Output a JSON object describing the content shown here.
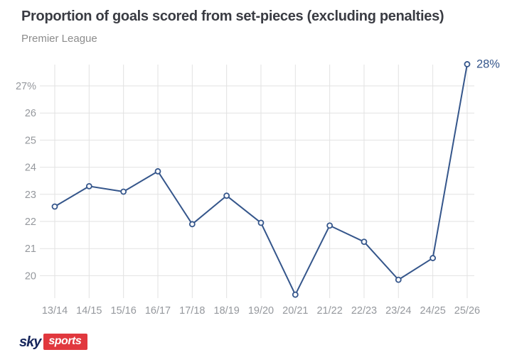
{
  "header": {
    "title": "Proportion of goals scored from set-pieces (excluding penalties)",
    "subtitle": "Premier League"
  },
  "chart_data": {
    "type": "line",
    "title": "Proportion of goals scored from set-pieces (excluding penalties)",
    "subtitle": "Premier League",
    "categories": [
      "13/14",
      "14/15",
      "15/16",
      "16/17",
      "17/18",
      "18/19",
      "19/20",
      "20/21",
      "21/22",
      "22/23",
      "23/24",
      "24/25",
      "25/26"
    ],
    "values": [
      22.55,
      23.3,
      23.1,
      23.85,
      21.9,
      22.95,
      21.95,
      19.3,
      21.85,
      21.25,
      19.85,
      20.65,
      27.8
    ],
    "xlabel": "",
    "ylabel": "",
    "y_ticks": [
      27,
      26,
      25,
      24,
      23,
      22,
      21,
      20
    ],
    "y_tick_labels": [
      "27%",
      "26",
      "25",
      "24",
      "23",
      "22",
      "21",
      "20"
    ],
    "ylim": [
      19.0,
      28.2
    ],
    "grid": true,
    "legend": "none",
    "marker": "open-circle",
    "annotation": {
      "category": "25/26",
      "label": "28%"
    }
  },
  "colors": {
    "line": "#35568b",
    "grid": "#e2e2e2",
    "tick_label": "#95989d",
    "title": "#3a3c43",
    "subtitle": "#8c8c8c",
    "annotation": "#35568b",
    "logo_navy": "#16265c",
    "logo_red": "#e1383e",
    "background": "#ffffff"
  },
  "footer": {
    "logo": {
      "brand": "sky",
      "sub": "sports"
    }
  }
}
